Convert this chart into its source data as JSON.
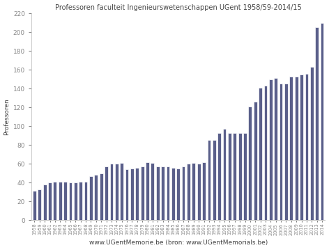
{
  "title": "Professoren faculteit Ingenieurswetenschappen UGent 1958/59-2014/15",
  "xlabel": "www.UGentMemorie.be (bron: www.UGentMemorials.be)",
  "ylabel": "Professoren",
  "bar_color": "#5a5f8a",
  "edge_color": "#ffffff",
  "background_color": "#ffffff",
  "years": [
    "1958",
    "1959",
    "1960",
    "1961",
    "1962",
    "1963",
    "1964",
    "1965",
    "1966",
    "1967",
    "1968",
    "1969",
    "1970",
    "1971",
    "1972",
    "1973",
    "1974",
    "1975",
    "1976",
    "1977",
    "1978",
    "1979",
    "1980",
    "1981",
    "1982",
    "1983",
    "1984",
    "1985",
    "1986",
    "1987",
    "1988",
    "1989",
    "1990",
    "1991",
    "1992",
    "1993",
    "1994",
    "1995",
    "1996",
    "1997",
    "1998",
    "1999",
    "2000",
    "2001",
    "2002",
    "2003",
    "2004",
    "2005",
    "2006",
    "2007",
    "2008",
    "2009",
    "2010",
    "2011",
    "2012",
    "2013",
    "2014"
  ],
  "values": [
    31,
    33,
    38,
    40,
    41,
    41,
    41,
    40,
    40,
    41,
    41,
    47,
    48,
    50,
    57,
    60,
    60,
    61,
    54,
    55,
    56,
    57,
    62,
    61,
    57,
    57,
    57,
    56,
    55,
    57,
    60,
    61,
    60,
    62,
    85,
    85,
    93,
    97,
    93,
    93,
    93,
    93,
    121,
    126,
    141,
    143,
    150,
    151,
    145,
    145,
    153,
    153,
    155,
    156,
    163,
    205,
    210
  ],
  "ylim": [
    0,
    220
  ],
  "yticks": [
    0,
    20,
    40,
    60,
    80,
    100,
    120,
    140,
    160,
    180,
    200,
    220
  ],
  "title_fontsize": 7.0,
  "ylabel_fontsize": 6.5,
  "xlabel_fontsize": 6.5,
  "ytick_fontsize": 6.5,
  "xtick_fontsize": 4.8,
  "bar_width": 0.65
}
